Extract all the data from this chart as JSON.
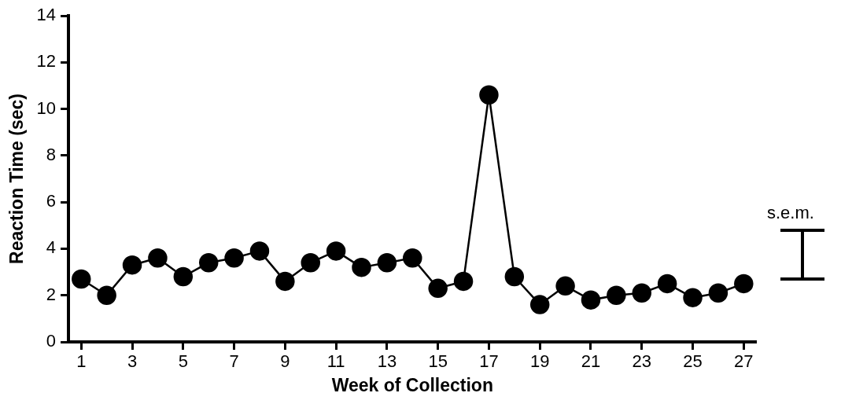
{
  "chart_data": {
    "type": "line",
    "xlabel": "Week of Collection",
    "ylabel": "Reaction Time (sec)",
    "x": [
      1,
      2,
      3,
      4,
      5,
      6,
      7,
      8,
      9,
      10,
      11,
      12,
      13,
      14,
      15,
      16,
      17,
      18,
      19,
      20,
      21,
      22,
      23,
      24,
      25,
      26,
      27
    ],
    "xlim": [
      0.5,
      27.5
    ],
    "xticks": [
      1,
      3,
      5,
      7,
      9,
      11,
      13,
      15,
      17,
      19,
      21,
      23,
      25,
      27
    ],
    "series": [
      {
        "color": "#000000",
        "values": [
          2.7,
          2.0,
          3.3,
          3.6,
          2.8,
          3.4,
          3.6,
          3.9,
          2.6,
          3.4,
          3.9,
          3.2,
          3.4,
          3.6,
          2.3,
          2.6,
          10.6,
          2.8,
          1.6,
          2.4,
          1.8,
          2.0,
          2.1,
          2.5,
          1.9,
          2.1,
          2.5
        ]
      }
    ],
    "ylim": [
      0,
      14
    ],
    "yticks": [
      0,
      2,
      4,
      6,
      8,
      10,
      12,
      14
    ],
    "grid": false,
    "legend": false,
    "marker": "circle",
    "line_style": "solid",
    "annotations": [
      "s.e.m."
    ]
  }
}
